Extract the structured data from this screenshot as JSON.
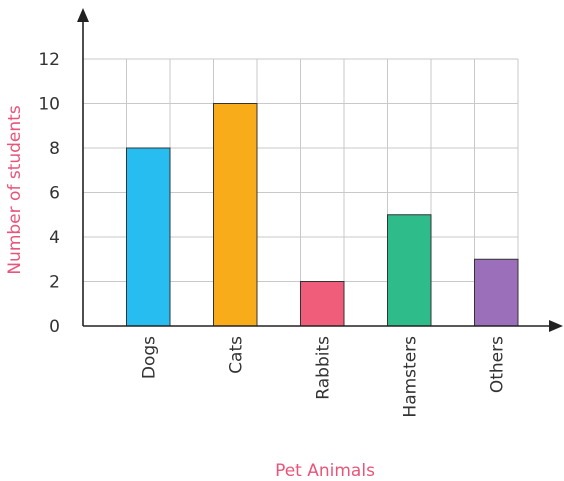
{
  "chart_data": {
    "type": "bar",
    "categories": [
      "Dogs",
      "Cats",
      "Rabbits",
      "Hamsters",
      "Others"
    ],
    "values": [
      8,
      10,
      2,
      5,
      3
    ],
    "colors": [
      "#27bdf0",
      "#f9ac1a",
      "#ef5d7a",
      "#2dbc8a",
      "#9b6fb9"
    ],
    "xlabel": "Pet Animals",
    "ylabel": "Number of students",
    "ylim": [
      0,
      12
    ],
    "yticks": [
      0,
      2,
      4,
      6,
      8,
      10,
      12
    ],
    "grid": true,
    "label_color": "#e8557a"
  }
}
